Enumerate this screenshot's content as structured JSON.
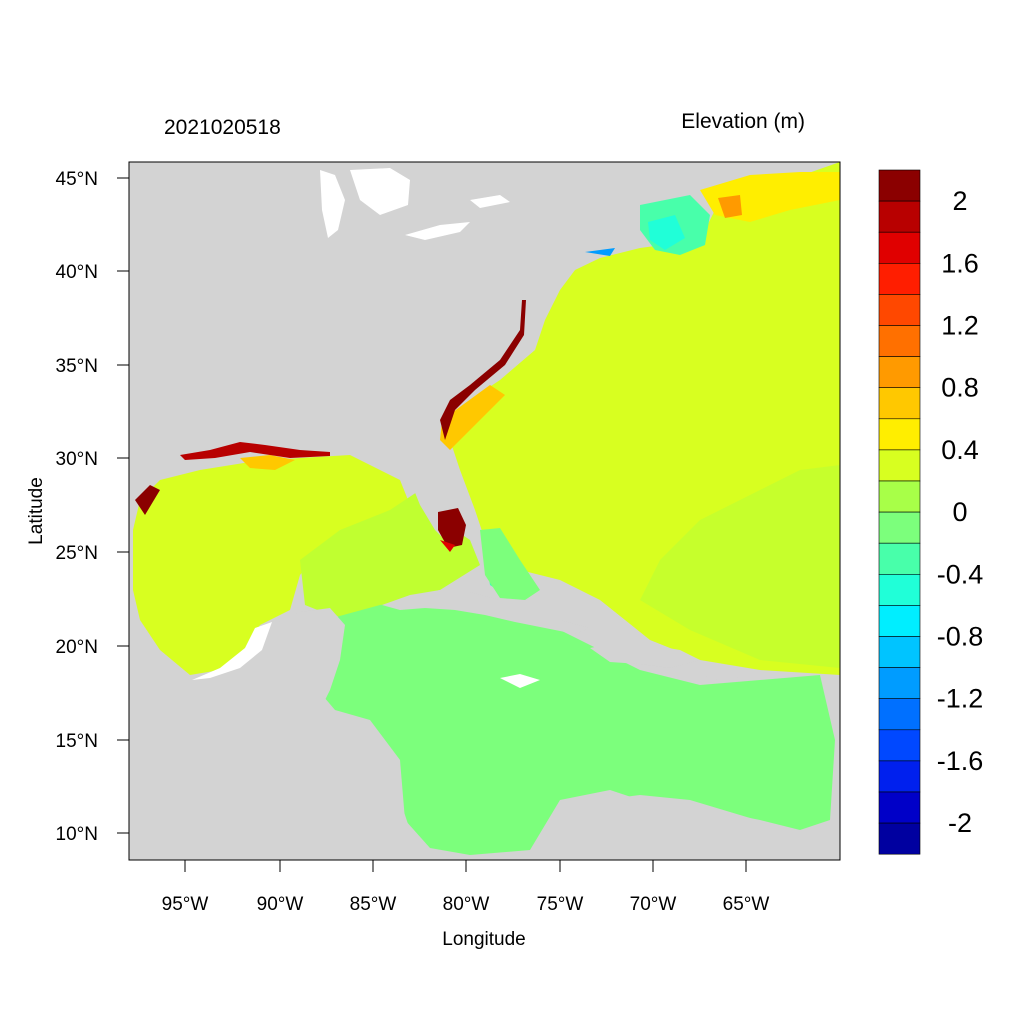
{
  "header": {
    "left_title": "2021020518",
    "right_title": "Elevation (m)"
  },
  "axes": {
    "xlabel": "Longitude",
    "ylabel": "Latitude",
    "x_ticks": [
      "95°W",
      "90°W",
      "85°W",
      "80°W",
      "75°W",
      "70°W",
      "65°W"
    ],
    "y_ticks": [
      "45°N",
      "40°N",
      "35°N",
      "30°N",
      "25°N",
      "20°N",
      "15°N",
      "10°N"
    ]
  },
  "colorbar": {
    "tick_labels": [
      "2",
      "1.6",
      "1.2",
      "0.8",
      "0.4",
      "0",
      "-0.4",
      "-0.8",
      "-1.2",
      "-1.6",
      "-2"
    ],
    "colors": [
      "#8b0000",
      "#b80000",
      "#e00000",
      "#ff1e00",
      "#ff4800",
      "#ff7000",
      "#ff9a00",
      "#ffc800",
      "#ffee00",
      "#d8ff20",
      "#a8ff48",
      "#7cff7c",
      "#48ffaa",
      "#20ffd8",
      "#00eeff",
      "#00c4ff",
      "#009cff",
      "#0070ff",
      "#0048ff",
      "#0020ee",
      "#0000c8",
      "#0000a0"
    ]
  },
  "chart_data": {
    "type": "heatmap",
    "title": "2021020518",
    "subtitle": "Elevation (m)",
    "xlabel": "Longitude",
    "ylabel": "Latitude",
    "xlim": [
      -98,
      -60
    ],
    "ylim": [
      8.5,
      46
    ],
    "color_levels": [
      -2,
      -1.8,
      -1.6,
      -1.4,
      -1.2,
      -1,
      -0.8,
      -0.6,
      -0.4,
      -0.2,
      0,
      0.2,
      0.4,
      0.6,
      0.8,
      1,
      1.2,
      1.4,
      1.6,
      1.8,
      2
    ],
    "legend": "right",
    "grid": false
  }
}
